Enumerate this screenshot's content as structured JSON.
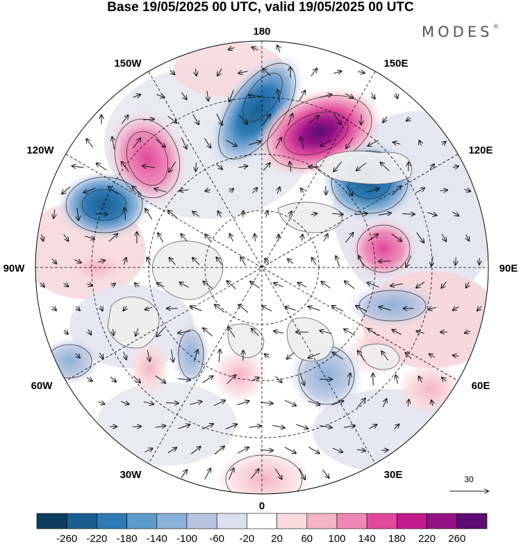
{
  "header": {
    "title": "Base 19/05/2025 00 UTC, valid 19/05/2025 00 UTC",
    "brand": "MODES",
    "brand_mark": "®"
  },
  "map": {
    "projection": "north-polar-stereographic",
    "longitude_labels": {
      "top": "180",
      "top_left": "150W",
      "top_right": "150E",
      "upper_left": "120W",
      "upper_right": "120E",
      "left": "90W",
      "right": "90E",
      "lower_left": "60W",
      "lower_right": "60E",
      "bottom_left": "30W",
      "bottom_right": "30E",
      "bottom": "0"
    },
    "vector_scale_label": "30",
    "colors": {
      "negative_strong": "#1a5f8f",
      "negative_mid": "#5b9bc9",
      "negative_weak": "#c3cce3",
      "near_zero": "#e2e3ee",
      "positive_weak": "#f4cdd2",
      "positive_mid": "#e87fb0",
      "positive_strong": "#7a157f"
    }
  },
  "colorbar": {
    "tick_labels": [
      "-260",
      "-220",
      "-180",
      "-140",
      "-100",
      "-60",
      "-20",
      "20",
      "60",
      "100",
      "140",
      "180",
      "220",
      "260"
    ],
    "colors": [
      "#0e3c5c",
      "#1a5f8f",
      "#2e7bb6",
      "#5b9bc9",
      "#8bb1d8",
      "#b7c3e0",
      "#dcdfee",
      "#ffffff",
      "#f9dadd",
      "#f4b3c6",
      "#ef87b4",
      "#e1499e",
      "#c01a8c",
      "#941286",
      "#5c0c73"
    ]
  }
}
